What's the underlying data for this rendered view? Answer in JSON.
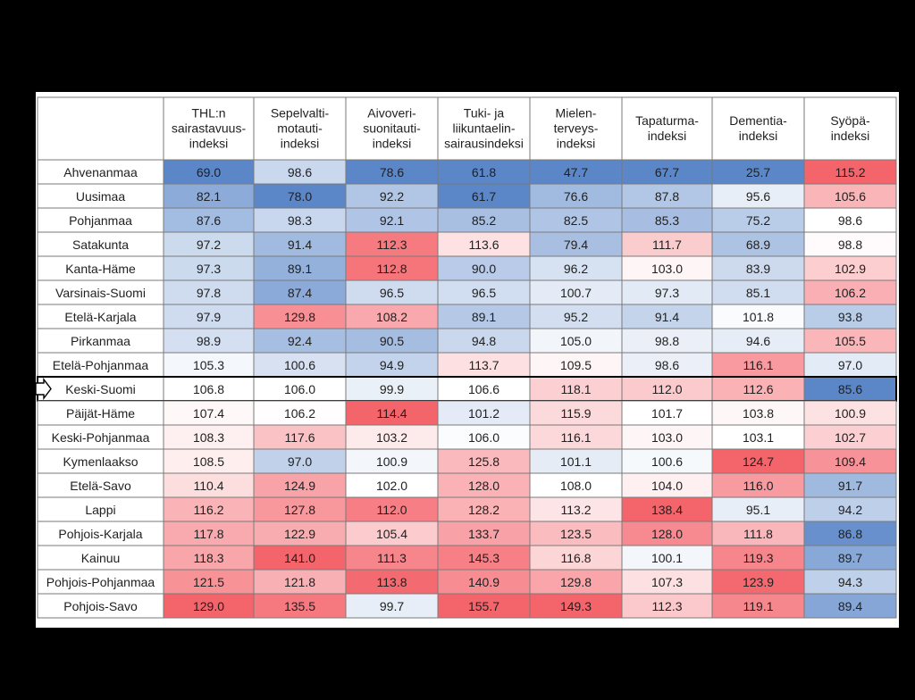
{
  "chart_data": {
    "type": "heatmap",
    "columns": [
      [
        "THL:n",
        "sairastavuus-",
        "indeksi"
      ],
      [
        "Sepelvalti-",
        "motauti-",
        "indeksi"
      ],
      [
        "Aivoveri-",
        "suonitauti-",
        "indeksi"
      ],
      [
        "Tuki- ja",
        "liikuntaelin-",
        "sairausindeksi"
      ],
      [
        "Mielen-",
        "terveys-",
        "indeksi"
      ],
      [
        "Tapaturma-",
        "indeksi"
      ],
      [
        "Dementia-",
        "indeksi"
      ],
      [
        "Syöpä-",
        "indeksi"
      ]
    ],
    "rows": [
      {
        "region": "Ahvenanmaa",
        "values": [
          "69.0",
          "98.6",
          "78.6",
          "61.8",
          "47.7",
          "67.7",
          "25.7",
          "115.2"
        ]
      },
      {
        "region": "Uusimaa",
        "values": [
          "82.1",
          "78.0",
          "92.2",
          "61.7",
          "76.6",
          "87.8",
          "95.6",
          "105.6"
        ]
      },
      {
        "region": "Pohjanmaa",
        "values": [
          "87.6",
          "98.3",
          "92.1",
          "85.2",
          "82.5",
          "85.3",
          "75.2",
          "98.6"
        ]
      },
      {
        "region": "Satakunta",
        "values": [
          "97.2",
          "91.4",
          "112.3",
          "113.6",
          "79.4",
          "111.7",
          "68.9",
          "98.8"
        ]
      },
      {
        "region": "Kanta-Häme",
        "values": [
          "97.3",
          "89.1",
          "112.8",
          "90.0",
          "96.2",
          "103.0",
          "83.9",
          "102.9"
        ]
      },
      {
        "region": "Varsinais-Suomi",
        "values": [
          "97.8",
          "87.4",
          "96.5",
          "96.5",
          "100.7",
          "97.3",
          "85.1",
          "106.2"
        ]
      },
      {
        "region": "Etelä-Karjala",
        "values": [
          "97.9",
          "129.8",
          "108.2",
          "89.1",
          "95.2",
          "91.4",
          "101.8",
          "93.8"
        ]
      },
      {
        "region": "Pirkanmaa",
        "values": [
          "98.9",
          "92.4",
          "90.5",
          "94.8",
          "105.0",
          "98.8",
          "94.6",
          "105.5"
        ]
      },
      {
        "region": "Etelä-Pohjanmaa",
        "values": [
          "105.3",
          "100.6",
          "94.9",
          "113.7",
          "109.5",
          "98.6",
          "116.1",
          "97.0"
        ]
      },
      {
        "region": "Keski-Suomi",
        "values": [
          "106.8",
          "106.0",
          "99.9",
          "106.6",
          "118.1",
          "112.0",
          "112.6",
          "85.6"
        ],
        "highlighted": true
      },
      {
        "region": "Päijät-Häme",
        "values": [
          "107.4",
          "106.2",
          "114.4",
          "101.2",
          "115.9",
          "101.7",
          "103.8",
          "100.9"
        ]
      },
      {
        "region": "Keski-Pohjanmaa",
        "values": [
          "108.3",
          "117.6",
          "103.2",
          "106.0",
          "116.1",
          "103.0",
          "103.1",
          "102.7"
        ]
      },
      {
        "region": "Kymenlaakso",
        "values": [
          "108.5",
          "97.0",
          "100.9",
          "125.8",
          "101.1",
          "100.6",
          "124.7",
          "109.4"
        ]
      },
      {
        "region": "Etelä-Savo",
        "values": [
          "110.4",
          "124.9",
          "102.0",
          "128.0",
          "108.0",
          "104.0",
          "116.0",
          "91.7"
        ]
      },
      {
        "region": "Lappi",
        "values": [
          "116.2",
          "127.8",
          "112.0",
          "128.2",
          "113.2",
          "138.4",
          "95.1",
          "94.2"
        ]
      },
      {
        "region": "Pohjois-Karjala",
        "values": [
          "117.8",
          "122.9",
          "105.4",
          "133.7",
          "123.5",
          "128.0",
          "111.8",
          "86.8"
        ]
      },
      {
        "region": "Kainuu",
        "values": [
          "118.3",
          "141.0",
          "111.3",
          "145.3",
          "116.8",
          "100.1",
          "119.3",
          "89.7"
        ]
      },
      {
        "region": "Pohjois-Pohjanmaa",
        "values": [
          "121.5",
          "121.8",
          "113.8",
          "140.9",
          "129.8",
          "107.3",
          "123.9",
          "94.3"
        ]
      },
      {
        "region": "Pohjois-Savo",
        "values": [
          "129.0",
          "135.5",
          "99.7",
          "155.7",
          "149.3",
          "112.3",
          "119.1",
          "89.4"
        ]
      }
    ],
    "colors": {
      "low": "#5b87c9",
      "neutral": "#ffffff",
      "high": "#f4646b",
      "border": "#7a7a7a",
      "text": "#1f1f1f"
    }
  }
}
